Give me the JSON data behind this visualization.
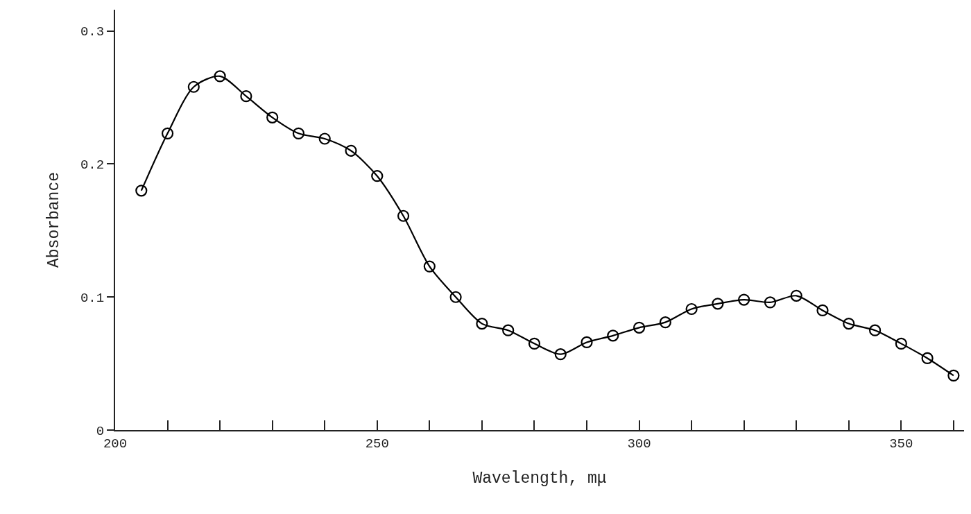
{
  "chart_data": {
    "type": "line",
    "xlabel": "Wavelength, mμ",
    "ylabel": "Absorbance",
    "x": [
      205,
      210,
      215,
      220,
      225,
      230,
      235,
      240,
      245,
      250,
      255,
      260,
      265,
      270,
      275,
      280,
      285,
      290,
      295,
      300,
      305,
      310,
      315,
      320,
      325,
      330,
      335,
      340,
      345,
      350,
      355,
      360
    ],
    "series": [
      {
        "color": "#000000",
        "values": [
          0.18,
          0.223,
          0.258,
          0.266,
          0.251,
          0.235,
          0.223,
          0.219,
          0.21,
          0.191,
          0.161,
          0.123,
          0.1,
          0.08,
          0.075,
          0.065,
          0.057,
          0.066,
          0.071,
          0.077,
          0.081,
          0.091,
          0.095,
          0.098,
          0.096,
          0.101,
          0.09,
          0.08,
          0.075,
          0.065,
          0.054,
          0.041
        ]
      }
    ],
    "xlim": [
      200,
      362
    ],
    "xticks": [
      200,
      {
        "value": 210,
        "label": null
      },
      {
        "value": 220,
        "label": null
      },
      {
        "value": 230,
        "label": null
      },
      {
        "value": 240,
        "label": null
      },
      250,
      {
        "value": 260,
        "label": null
      },
      {
        "value": 270,
        "label": null
      },
      {
        "value": 280,
        "label": null
      },
      {
        "value": 290,
        "label": null
      },
      300,
      {
        "value": 310,
        "label": null
      },
      {
        "value": 320,
        "label": null
      },
      {
        "value": 330,
        "label": null
      },
      {
        "value": 340,
        "label": null
      },
      350,
      {
        "value": 360,
        "label": null
      }
    ],
    "ylim": [
      0,
      0.316
    ],
    "yticks": [
      0,
      0.1,
      0.2,
      0.3
    ],
    "marker": "circle",
    "line_style": "solid"
  }
}
